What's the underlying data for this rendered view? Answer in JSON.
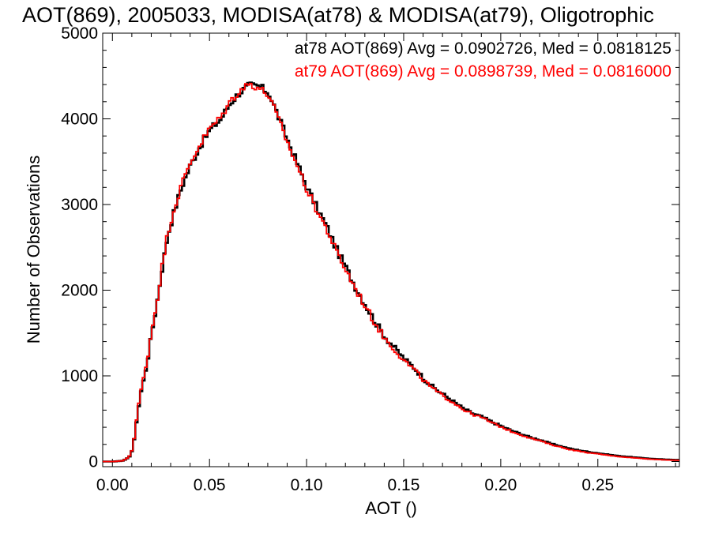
{
  "chart_data": {
    "type": "histogram",
    "title": "AOT(869), 2005033, MODISA(at78) & MODISA(at79), Oligotrophic",
    "xlabel": "AOT ()",
    "ylabel": "Number of Observations",
    "xlim": [
      -0.005,
      0.292
    ],
    "ylim": [
      -60,
      5000
    ],
    "xticks": [
      {
        "value": 0.0,
        "label": "0.00"
      },
      {
        "value": 0.05,
        "label": "0.05"
      },
      {
        "value": 0.1,
        "label": "0.10"
      },
      {
        "value": 0.15,
        "label": "0.15"
      },
      {
        "value": 0.2,
        "label": "0.20"
      },
      {
        "value": 0.25,
        "label": "0.25"
      }
    ],
    "yticks": [
      {
        "value": 0,
        "label": "0"
      },
      {
        "value": 1000,
        "label": "1000"
      },
      {
        "value": 2000,
        "label": "2000"
      },
      {
        "value": 3000,
        "label": "3000"
      },
      {
        "value": 4000,
        "label": "4000"
      },
      {
        "value": 5000,
        "label": "5000"
      }
    ],
    "grid": false,
    "legend_position": "top-right",
    "series": [
      {
        "name": "at78",
        "color": "#000000",
        "legend_text": "at78 AOT(869) Avg = 0.0902726, Med = 0.0818125",
        "x": [
          -0.005,
          0.0,
          0.005,
          0.008,
          0.01,
          0.012,
          0.014,
          0.016,
          0.018,
          0.02,
          0.022,
          0.025,
          0.028,
          0.031,
          0.035,
          0.04,
          0.045,
          0.05,
          0.055,
          0.06,
          0.065,
          0.07,
          0.075,
          0.08,
          0.085,
          0.09,
          0.095,
          0.1,
          0.105,
          0.11,
          0.115,
          0.12,
          0.125,
          0.13,
          0.135,
          0.14,
          0.145,
          0.15,
          0.155,
          0.16,
          0.165,
          0.17,
          0.175,
          0.18,
          0.185,
          0.19,
          0.195,
          0.2,
          0.205,
          0.21,
          0.215,
          0.22,
          0.225,
          0.23,
          0.235,
          0.24,
          0.245,
          0.25,
          0.255,
          0.26,
          0.265,
          0.27,
          0.275,
          0.28,
          0.285,
          0.292
        ],
        "y": [
          0,
          0,
          10,
          50,
          150,
          500,
          800,
          1000,
          1250,
          1550,
          1800,
          2250,
          2650,
          2900,
          3200,
          3480,
          3700,
          3880,
          3990,
          4180,
          4310,
          4390,
          4380,
          4300,
          4020,
          3730,
          3460,
          3180,
          2950,
          2730,
          2470,
          2250,
          2020,
          1820,
          1620,
          1450,
          1320,
          1190,
          1090,
          960,
          860,
          780,
          700,
          620,
          560,
          520,
          460,
          410,
          360,
          320,
          280,
          250,
          210,
          180,
          150,
          130,
          110,
          95,
          80,
          65,
          55,
          45,
          35,
          28,
          22,
          18
        ]
      },
      {
        "name": "at79",
        "color": "#ff0000",
        "legend_text": "at79 AOT(869) Avg = 0.0898739, Med = 0.0816000",
        "x": [
          -0.005,
          0.0,
          0.005,
          0.008,
          0.01,
          0.012,
          0.014,
          0.016,
          0.018,
          0.02,
          0.022,
          0.025,
          0.028,
          0.031,
          0.035,
          0.04,
          0.045,
          0.05,
          0.055,
          0.06,
          0.065,
          0.07,
          0.075,
          0.08,
          0.085,
          0.09,
          0.095,
          0.1,
          0.105,
          0.11,
          0.115,
          0.12,
          0.125,
          0.13,
          0.135,
          0.14,
          0.145,
          0.15,
          0.155,
          0.16,
          0.165,
          0.17,
          0.175,
          0.18,
          0.185,
          0.19,
          0.195,
          0.2,
          0.205,
          0.21,
          0.215,
          0.22,
          0.225,
          0.23,
          0.235,
          0.24,
          0.245,
          0.25,
          0.255,
          0.26,
          0.265,
          0.27,
          0.275,
          0.28,
          0.285,
          0.292
        ],
        "y": [
          0,
          0,
          10,
          55,
          160,
          520,
          820,
          1030,
          1280,
          1580,
          1820,
          2280,
          2680,
          2930,
          3230,
          3510,
          3720,
          3900,
          4010,
          4200,
          4330,
          4410,
          4360,
          4270,
          3990,
          3700,
          3430,
          3150,
          2920,
          2700,
          2440,
          2220,
          2000,
          1800,
          1600,
          1430,
          1300,
          1170,
          1070,
          940,
          840,
          760,
          690,
          610,
          550,
          510,
          450,
          400,
          350,
          310,
          270,
          240,
          200,
          170,
          140,
          120,
          100,
          88,
          72,
          58,
          48,
          40,
          30,
          24,
          18,
          14
        ]
      }
    ]
  }
}
